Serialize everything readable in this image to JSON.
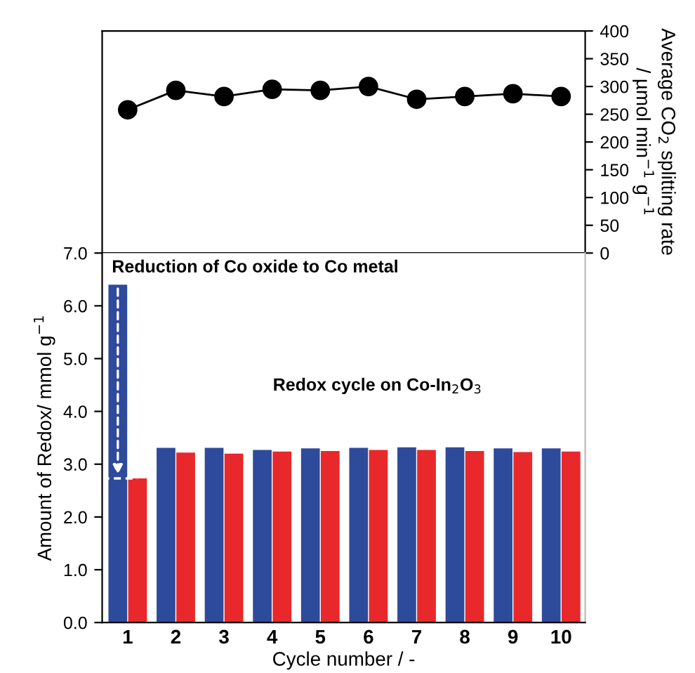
{
  "chart_data": [
    {
      "type": "line",
      "categories": [
        null,
        null,
        null,
        null,
        null,
        null,
        null,
        null,
        null,
        null
      ],
      "ylabel": "Average CO$_{2}$ splitting rate\n/ µmol min$^{−1}$ g$^{−1}$",
      "ylim": [
        0,
        400
      ],
      "yticks": [
        0,
        50,
        100,
        150,
        200,
        250,
        300,
        350,
        400
      ],
      "marker": "circle",
      "line_style": "solid",
      "grid": false,
      "legend": false,
      "series": [
        {
          "color": "#000000",
          "values": [
            258,
            293,
            282,
            295,
            293,
            300,
            277,
            282,
            287,
            282
          ]
        }
      ]
    },
    {
      "type": "bar",
      "categories": [
        "1",
        "2",
        "3",
        "4",
        "5",
        "6",
        "7",
        "8",
        "9",
        "10"
      ],
      "xlabel": "Cycle number / -",
      "ylabel": "Amount of Redox/ mmol g$^{−1}$",
      "ylim": [
        0,
        7
      ],
      "yticks": [
        {
          "value": 0,
          "label": "0.0"
        },
        {
          "value": 1,
          "label": "1.0"
        },
        {
          "value": 2,
          "label": "2.0"
        },
        {
          "value": 3,
          "label": "3.0"
        },
        {
          "value": 4,
          "label": "4.0"
        },
        {
          "value": 5,
          "label": "5.0"
        },
        {
          "value": 6,
          "label": "6.0"
        },
        {
          "value": 7,
          "label": "7.0"
        }
      ],
      "grid": false,
      "legend": false,
      "annotations": [
        "Reduction of Co oxide to Co metal",
        "Redox cycle on Co-In$_{2}$O$_{3}$"
      ],
      "series": [
        {
          "color": "#2e4a9a",
          "values": [
            6.4,
            3.31,
            3.31,
            3.27,
            3.3,
            3.31,
            3.32,
            3.32,
            3.3,
            3.3
          ]
        },
        {
          "color": "#e8282a",
          "values": [
            2.73,
            3.22,
            3.2,
            3.24,
            3.25,
            3.27,
            3.27,
            3.25,
            3.23,
            3.24
          ]
        }
      ]
    }
  ]
}
